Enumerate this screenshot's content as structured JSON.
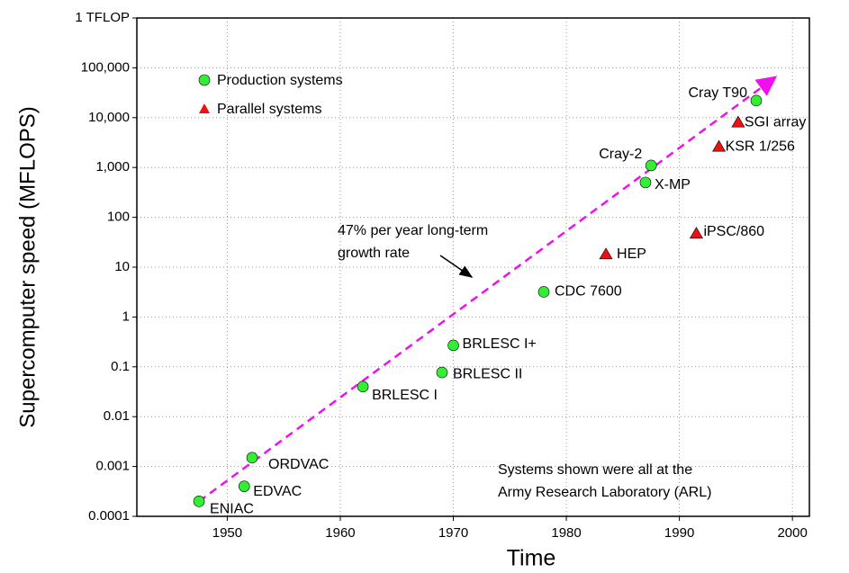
{
  "chart_data": {
    "type": "scatter",
    "x_label": "Time",
    "y_label": "Supercomputer speed (MFLOPS)",
    "log_y": true,
    "grid": true,
    "xlim": [
      1942,
      2001.5
    ],
    "xticks": [
      1950,
      1960,
      1970,
      1980,
      1990,
      2000
    ],
    "ylim": [
      0.0001,
      1000000
    ],
    "yticks": [
      0.0001,
      0.001,
      0.01,
      0.1,
      1,
      10,
      100,
      {
        "value": 1000,
        "label": "1,000"
      },
      {
        "value": 10000,
        "label": "10,000"
      },
      {
        "value": 100000,
        "label": "100,000"
      },
      {
        "value": 1000000,
        "label": "1 TFLOP"
      }
    ],
    "series": [
      {
        "name": "Production systems",
        "color": "#33ee33",
        "marker": "circle",
        "labels": [
          "ENIAC",
          "EDVAC",
          "ORDVAC",
          "BRLESC I",
          "BRLESC II",
          "BRLESC I+",
          "CDC 7600",
          "X-MP",
          "Cray-2",
          "Cray T90"
        ],
        "x": [
          1947.5,
          1951.5,
          1952.2,
          1962,
          1969,
          1970,
          1978,
          1987,
          1987.5,
          1996.8
        ],
        "values": [
          0.0002,
          0.0004,
          0.0015,
          0.04,
          0.077,
          0.27,
          3.2,
          500,
          1100,
          22000
        ]
      },
      {
        "name": "Parallel systems",
        "color": "#ee1111",
        "marker": "triangle",
        "labels": [
          "HEP",
          "iPSC/860",
          "KSR 1/256",
          "SGI array"
        ],
        "x": [
          1983.5,
          1991.5,
          1993.5,
          1995.2
        ],
        "values": [
          18,
          47,
          2600,
          8000
        ]
      }
    ],
    "trend": {
      "color": "#ee11ee",
      "x": [
        1947.5,
        1998.5
      ],
      "values": [
        0.0002,
        65000
      ]
    },
    "annotations": [
      {
        "lines": [
          "47% per year long-term",
          "growth rate"
        ]
      },
      {
        "lines": [
          "Systems shown were all at the",
          "Army Research Laboratory (ARL)"
        ]
      }
    ]
  }
}
